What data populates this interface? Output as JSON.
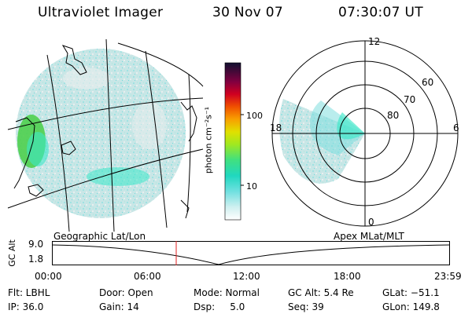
{
  "header": {
    "instrument": "Ultraviolet Imager",
    "date": "30 Nov 07",
    "time": "07:30:07 UT"
  },
  "colorbar": {
    "unit": "photon cm⁻²s⁻¹",
    "ticks": [
      {
        "label": "100",
        "value": 100
      },
      {
        "label": "10",
        "value": 10
      }
    ]
  },
  "polar_plot": {
    "mlt_labels": [
      "12",
      "18",
      "6",
      "0"
    ],
    "lat_labels": [
      "60",
      "70",
      "80"
    ]
  },
  "orbit_plot": {
    "left_title": "Geographic Lat/Lon",
    "right_title": "Apex MLat/MLT",
    "y_label": "GC Alt",
    "y_ticks": [
      "9.0",
      "1.8"
    ],
    "x_ticks": [
      "00:00",
      "06:00",
      "12:00",
      "18:00",
      "23:59"
    ],
    "current_time_marker": "07:30:07"
  },
  "footer": {
    "filter": "Flt: LBHL",
    "ip": "IP: 36.0",
    "door": "Door: Open",
    "gain": "Gain: 14",
    "mode": "Mode: Normal",
    "dsp": "Dsp:     5.0",
    "gc_alt": "GC Alt: 5.4 Re",
    "seq": "Seq: 39",
    "glat": "GLat: −51.1",
    "glon": "GLon: 149.8"
  },
  "colors": {
    "low_emission": "#c8e4e4",
    "mid_emission": "#7fdede",
    "high_emission": "#3ce8c8",
    "green_emission": "#4ecf4e",
    "marker": "#e02020"
  }
}
